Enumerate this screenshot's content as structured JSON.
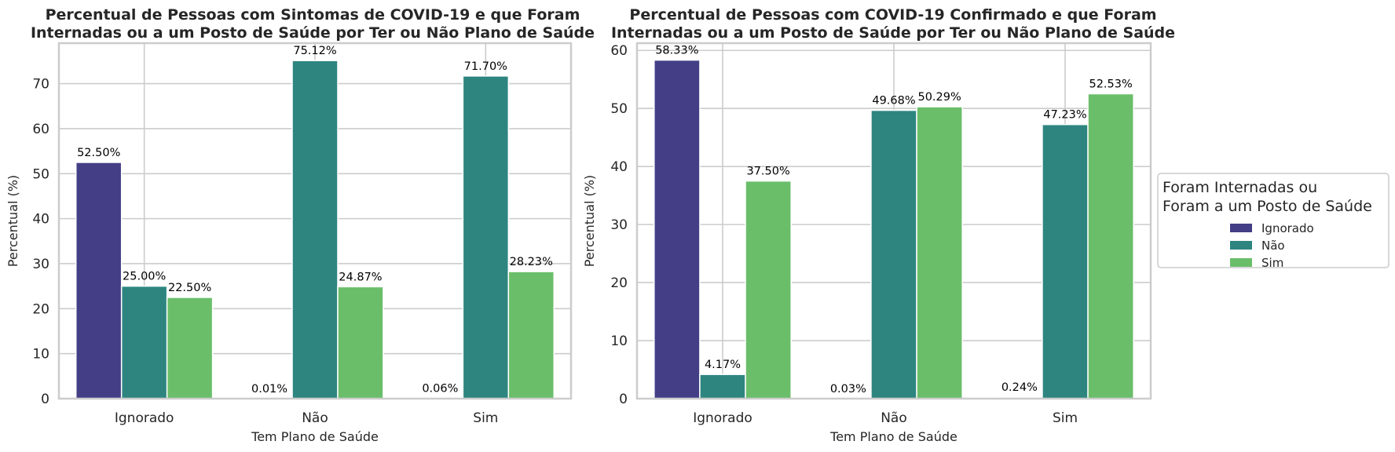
{
  "chart_data": [
    {
      "type": "bar",
      "title": "Percentual de Pessoas com Sintomas de COVID-19 e que Foram\nInternadas ou a um Posto de Saúde por Ter ou Não Plano de Saúde",
      "xlabel": "Tem Plano de Saúde",
      "ylabel": "Percentual (%)",
      "categories": [
        "Ignorado",
        "Não",
        "Sim"
      ],
      "ylim": [
        0,
        79
      ],
      "yticks": [
        0,
        10,
        20,
        30,
        40,
        50,
        60,
        70
      ],
      "grid": true,
      "series": [
        {
          "name": "Ignorado",
          "values": [
            52.5,
            0.01,
            0.06
          ],
          "labels": [
            "52.50%",
            "0.01%",
            "0.06%"
          ]
        },
        {
          "name": "Não",
          "values": [
            25.0,
            75.12,
            71.7
          ],
          "labels": [
            "25.00%",
            "75.12%",
            "71.70%"
          ]
        },
        {
          "name": "Sim",
          "values": [
            22.5,
            24.87,
            28.23
          ],
          "labels": [
            "22.50%",
            "24.87%",
            "28.23%"
          ]
        }
      ]
    },
    {
      "type": "bar",
      "title": "Percentual de Pessoas com COVID-19 Confirmado e que Foram\nInternadas ou a um Posto de Saúde por Ter ou Não Plano de Saúde",
      "xlabel": "Tem Plano de Saúde",
      "ylabel": "Percentual (%)",
      "categories": [
        "Ignorado",
        "Não",
        "Sim"
      ],
      "ylim": [
        0,
        61.25
      ],
      "yticks": [
        0,
        10,
        20,
        30,
        40,
        50,
        60
      ],
      "grid": true,
      "series": [
        {
          "name": "Ignorado",
          "values": [
            58.33,
            0.03,
            0.24
          ],
          "labels": [
            "58.33%",
            "0.03%",
            "0.24%"
          ]
        },
        {
          "name": "Não",
          "values": [
            4.17,
            49.68,
            47.23
          ],
          "labels": [
            "4.17%",
            "49.68%",
            "47.23%"
          ]
        },
        {
          "name": "Sim",
          "values": [
            37.5,
            50.29,
            52.53
          ],
          "labels": [
            "37.50%",
            "50.29%",
            "52.53%"
          ]
        }
      ]
    }
  ],
  "legend": {
    "title": "Foram Internadas ou\nForam a um Posto de Saúde",
    "placement": "right",
    "items": [
      "Ignorado",
      "Não",
      "Sim"
    ]
  },
  "colors": {
    "Ignorado": "#433e85",
    "Não": "#2e8580",
    "Sim": "#6abe6a",
    "grid": "#cccccc",
    "spine": "#cccccc",
    "text": "#262626"
  }
}
